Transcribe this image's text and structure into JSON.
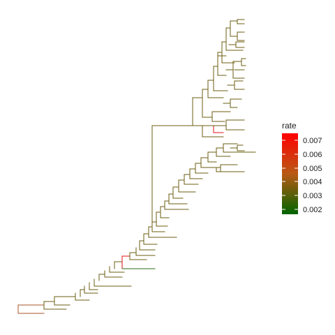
{
  "legend": {
    "title": "rate",
    "labels": [
      "0.007",
      "0.006",
      "0.005",
      "0.004",
      "0.003",
      "0.002"
    ],
    "colors": {
      "high": "#ff0000",
      "mid": "#b85a14",
      "low": "#006400"
    }
  },
  "chart_data": {
    "type": "phylogenetic-tree",
    "color_variable": "rate",
    "color_scale": {
      "min": 0.0017,
      "max": 0.0075
    },
    "tip_labels_shown": false
  }
}
